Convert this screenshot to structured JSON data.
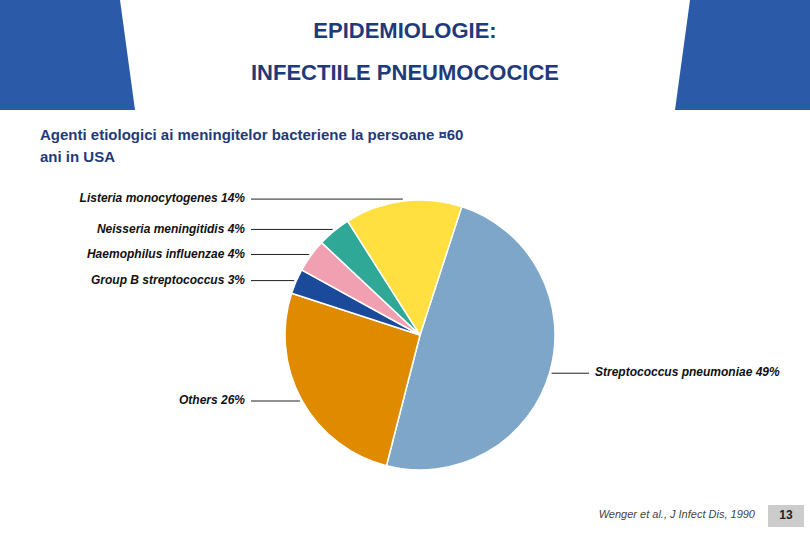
{
  "chart_data": {
    "type": "pie",
    "title": [
      "EPIDEMIOLOGIE:",
      "INFECTIILE PNEUMOCOCICE"
    ],
    "subtitle": [
      "Agenti etiologici ai meningitelor bacteriene la persoane ¤60",
      "ani in USA"
    ],
    "categories": [
      "Streptococcus pneumoniae 49%",
      "Others 26%",
      "Group B streptococcus 3%",
      "Haemophilus influenzae 4%",
      "Neisseria meningitidis 4%",
      "Listeria monocytogenes 14%"
    ],
    "values": [
      49,
      26,
      3,
      4,
      4,
      14
    ],
    "colors": [
      "#7EA6C8",
      "#E08A00",
      "#1A4A99",
      "#F0A0B0",
      "#30A898",
      "#FFE040"
    ],
    "annotations": [
      "Wenger et al., J Infect Dis, 1990",
      "13"
    ]
  }
}
